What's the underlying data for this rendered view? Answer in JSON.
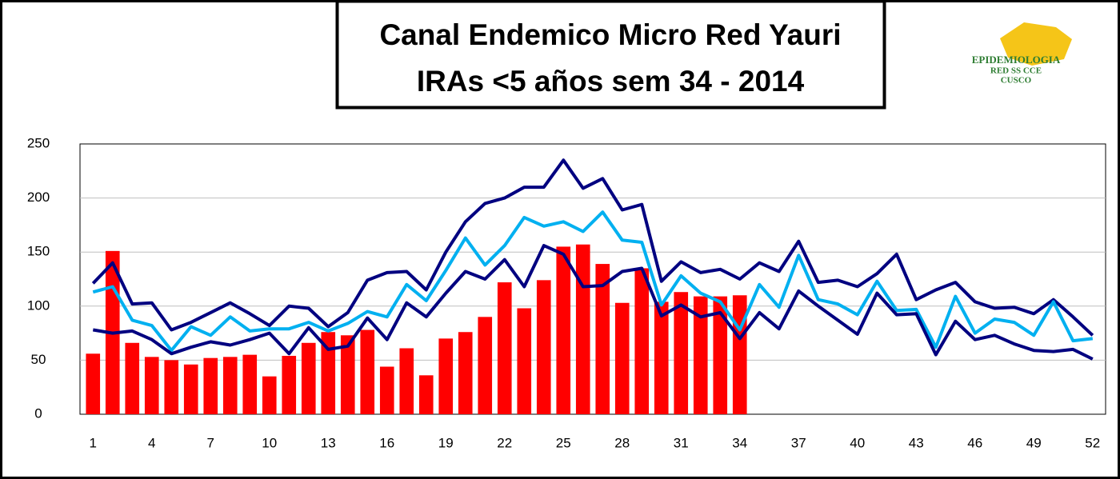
{
  "chart_data": {
    "type": "combo",
    "title_lines": [
      "Canal Endemico Micro Red  Yauri",
      "IRAs <5 años  sem 34 - 2014"
    ],
    "logo_lines": [
      "EPIDEMIOLOGIA",
      "RED SS CCE",
      "CUSCO"
    ],
    "categories": [
      "1",
      null,
      null,
      "4",
      null,
      null,
      "7",
      null,
      null,
      "10",
      null,
      null,
      "13",
      null,
      null,
      "16",
      null,
      null,
      "19",
      null,
      null,
      "22",
      null,
      null,
      "25",
      null,
      null,
      "28",
      null,
      null,
      "31",
      null,
      null,
      "34",
      null,
      null,
      "37",
      null,
      null,
      "40",
      null,
      null,
      "43",
      null,
      null,
      "46",
      null,
      null,
      "49",
      null,
      null,
      "52"
    ],
    "series": [
      {
        "type": "bar",
        "color": "#ff0000",
        "values": [
          56,
          151,
          66,
          53,
          50,
          46,
          52,
          53,
          55,
          35,
          54,
          66,
          76,
          73,
          78,
          44,
          61,
          36,
          70,
          76,
          90,
          122,
          98,
          124,
          155,
          157,
          139,
          103,
          135,
          104,
          113,
          109,
          109,
          110,
          null,
          null,
          null,
          null,
          null,
          null,
          null,
          null,
          null,
          null,
          null,
          null,
          null,
          null,
          null,
          null,
          null,
          null
        ]
      },
      {
        "type": "line",
        "color": "#000080",
        "values": [
          121,
          140,
          102,
          103,
          78,
          85,
          94,
          103,
          93,
          82,
          100,
          98,
          81,
          94,
          124,
          131,
          132,
          115,
          150,
          178,
          195,
          200,
          210,
          210,
          235,
          209,
          218,
          189,
          194,
          123,
          141,
          131,
          134,
          125,
          140,
          132,
          160,
          122,
          124,
          118,
          130,
          148,
          106,
          115,
          122,
          104,
          98,
          99,
          93,
          106,
          90,
          73
        ]
      },
      {
        "type": "line",
        "color": "#00b0f0",
        "values": [
          113,
          118,
          87,
          82,
          59,
          81,
          73,
          90,
          77,
          79,
          79,
          85,
          77,
          84,
          95,
          90,
          120,
          105,
          133,
          163,
          138,
          156,
          182,
          174,
          178,
          169,
          187,
          161,
          159,
          101,
          128,
          112,
          104,
          78,
          120,
          99,
          147,
          106,
          102,
          92,
          123,
          96,
          97,
          62,
          109,
          75,
          88,
          85,
          73,
          104,
          68,
          70
        ]
      },
      {
        "type": "line",
        "color": "#000080",
        "values": [
          78,
          75,
          77,
          69,
          56,
          62,
          67,
          64,
          69,
          75,
          56,
          80,
          60,
          63,
          89,
          69,
          103,
          90,
          112,
          132,
          125,
          143,
          118,
          156,
          148,
          118,
          119,
          132,
          135,
          91,
          101,
          90,
          94,
          70,
          94,
          79,
          114,
          100,
          87,
          74,
          112,
          92,
          93,
          55,
          86,
          69,
          73,
          65,
          59,
          58,
          60,
          51
        ]
      }
    ],
    "ylim": [
      0,
      250
    ],
    "yticks": [
      0,
      50,
      100,
      150,
      200,
      250
    ],
    "grid": true
  }
}
